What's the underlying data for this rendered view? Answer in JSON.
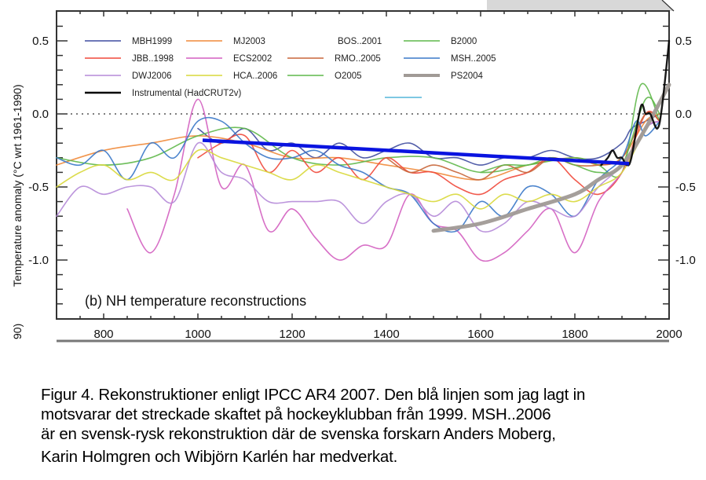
{
  "chart_data": {
    "type": "line",
    "title": "(b) NH temperature reconstructions",
    "xlabel": "",
    "ylabel": "Temperature anomaly (°C wrt 1961-1990)",
    "ylabel_cropped_fragment": "90)",
    "xlim": [
      700,
      2000
    ],
    "ylim": [
      -1.4,
      0.7
    ],
    "x_ticks": [
      800,
      1000,
      1200,
      1400,
      1600,
      1800,
      2000
    ],
    "x_tick_labels": [
      "800",
      "1000",
      "1200",
      "1400",
      "1600",
      "1800",
      "2000"
    ],
    "y_ticks": [
      0.5,
      0.0,
      -0.5,
      -1.0
    ],
    "y_tick_labels_left": [
      "0.5",
      "0.0",
      "-0.5",
      "-1.0"
    ],
    "y_tick_labels_right": [
      "0.5",
      "0.0",
      "-0.5",
      "-1.0"
    ],
    "zero_line": "dotted",
    "grid": false,
    "legend_position": "top-left",
    "legend": [
      {
        "name": "MBH1999",
        "color": "#3f4ca0"
      },
      {
        "name": "MJ2003",
        "color": "#f08a3a"
      },
      {
        "name": "BOS..2001",
        "color": "#e8e8e8"
      },
      {
        "name": "B2000",
        "color": "#5fb84a"
      },
      {
        "name": "JBB..1998",
        "color": "#f0483a"
      },
      {
        "name": "ECS2002",
        "color": "#d35fc0"
      },
      {
        "name": "RMO..2005",
        "color": "#c8663a"
      },
      {
        "name": "MSH..2005",
        "color": "#3a78c8"
      },
      {
        "name": "DWJ2006",
        "color": "#b58ad8"
      },
      {
        "name": "HCA..2006",
        "color": "#d8d83a"
      },
      {
        "name": "O2005",
        "color": "#5fb84a"
      },
      {
        "name": "PS2004",
        "color": "#a09a96"
      },
      {
        "name": "Instrumental (HadCRUT2v)",
        "color": "#000000"
      },
      {
        "name": "",
        "color": "#7ec8e3"
      }
    ],
    "series": [
      {
        "name": "MBH1999",
        "color": "#3f4ca0",
        "x": [
          1000,
          1050,
          1100,
          1150,
          1200,
          1250,
          1300,
          1350,
          1400,
          1450,
          1500,
          1550,
          1600,
          1650,
          1700,
          1750,
          1800,
          1850,
          1900,
          1920,
          1950,
          1980
        ],
        "y": [
          -0.1,
          -0.2,
          -0.1,
          -0.25,
          -0.2,
          -0.3,
          -0.2,
          -0.3,
          -0.25,
          -0.2,
          -0.3,
          -0.3,
          -0.35,
          -0.3,
          -0.3,
          -0.25,
          -0.3,
          -0.3,
          -0.2,
          -0.1,
          -0.05,
          0.0
        ]
      },
      {
        "name": "MJ2003",
        "color": "#f08a3a",
        "x": [
          700,
          800,
          900,
          1000,
          1100,
          1200,
          1300,
          1400,
          1500,
          1600,
          1700,
          1800,
          1850,
          1900,
          1950,
          1980
        ],
        "y": [
          -0.35,
          -0.25,
          -0.2,
          -0.15,
          -0.2,
          -0.3,
          -0.3,
          -0.35,
          -0.4,
          -0.45,
          -0.35,
          -0.3,
          -0.35,
          -0.3,
          -0.05,
          0.0
        ]
      },
      {
        "name": "B2000",
        "color": "#5fb84a",
        "x": [
          700,
          800,
          900,
          1000,
          1100,
          1200,
          1300,
          1400,
          1500,
          1600,
          1700,
          1800,
          1850,
          1900,
          1940,
          1980
        ],
        "y": [
          -0.3,
          -0.35,
          -0.3,
          -0.15,
          -0.1,
          -0.3,
          -0.35,
          -0.3,
          -0.3,
          -0.4,
          -0.35,
          -0.3,
          -0.35,
          -0.4,
          0.2,
          -0.05
        ]
      },
      {
        "name": "JBB..1998",
        "color": "#f0483a",
        "x": [
          1000,
          1050,
          1100,
          1150,
          1200,
          1250,
          1300,
          1350,
          1400,
          1450,
          1500,
          1550,
          1600,
          1650,
          1700,
          1750,
          1800,
          1850,
          1900,
          1950,
          1980
        ],
        "y": [
          -0.3,
          -0.2,
          -0.15,
          -0.4,
          -0.25,
          -0.4,
          -0.3,
          -0.45,
          -0.3,
          -0.4,
          -0.4,
          -0.5,
          -0.55,
          -0.45,
          -0.4,
          -0.3,
          -0.45,
          -0.55,
          -0.4,
          0.0,
          -0.05
        ]
      },
      {
        "name": "ECS2002",
        "color": "#d35fc0",
        "x": [
          850,
          900,
          950,
          1000,
          1050,
          1100,
          1150,
          1200,
          1250,
          1300,
          1350,
          1400,
          1450,
          1500,
          1550,
          1600,
          1650,
          1700,
          1750,
          1800,
          1850,
          1900,
          1950,
          1980
        ],
        "y": [
          -0.65,
          -0.95,
          -0.55,
          0.1,
          -0.5,
          -0.35,
          -0.8,
          -0.65,
          -0.85,
          -1.0,
          -0.9,
          -0.9,
          -0.55,
          -0.75,
          -0.8,
          -1.0,
          -0.95,
          -0.8,
          -0.65,
          -0.95,
          -0.6,
          -0.4,
          -0.1,
          -0.05
        ]
      },
      {
        "name": "RMO..2005",
        "color": "#c8663a",
        "x": [
          1400,
          1450,
          1500,
          1550,
          1600,
          1650,
          1700,
          1750,
          1800,
          1850,
          1900,
          1950,
          1980
        ],
        "y": [
          -0.3,
          -0.4,
          -0.35,
          -0.4,
          -0.45,
          -0.35,
          -0.4,
          -0.3,
          -0.35,
          -0.35,
          -0.3,
          0.0,
          -0.05
        ]
      },
      {
        "name": "MSH..2005",
        "color": "#3a78c8",
        "x": [
          700,
          750,
          800,
          850,
          900,
          950,
          1000,
          1050,
          1100,
          1150,
          1200,
          1250,
          1300,
          1350,
          1400,
          1450,
          1500,
          1550,
          1600,
          1650,
          1700,
          1750,
          1800,
          1850,
          1900,
          1930,
          1950,
          1980
        ],
        "y": [
          -0.3,
          -0.35,
          -0.25,
          -0.45,
          -0.2,
          -0.3,
          -0.05,
          -0.05,
          -0.2,
          -0.3,
          -0.3,
          -0.25,
          -0.35,
          -0.4,
          -0.5,
          -0.55,
          -0.75,
          -0.8,
          -0.6,
          -0.7,
          -0.5,
          -0.55,
          -0.7,
          -0.45,
          -0.3,
          -0.05,
          -0.15,
          -0.05
        ]
      },
      {
        "name": "DWJ2006",
        "color": "#b58ad8",
        "x": [
          700,
          750,
          800,
          850,
          900,
          950,
          1000,
          1050,
          1100,
          1150,
          1200,
          1250,
          1300,
          1350,
          1400,
          1450,
          1500,
          1550,
          1600,
          1650,
          1700,
          1750,
          1800,
          1850,
          1900,
          1950,
          1980
        ],
        "y": [
          -0.7,
          -0.5,
          -0.55,
          -0.5,
          -0.5,
          -0.6,
          -0.2,
          -0.4,
          -0.45,
          -0.6,
          -0.6,
          -0.6,
          -0.6,
          -0.75,
          -0.6,
          -0.55,
          -0.7,
          -0.6,
          -0.8,
          -0.75,
          -0.6,
          -0.65,
          -0.7,
          -0.5,
          -0.35,
          -0.1,
          -0.05
        ]
      },
      {
        "name": "HCA..2006",
        "color": "#d8d83a",
        "x": [
          700,
          750,
          800,
          850,
          900,
          950,
          1000,
          1050,
          1100,
          1150,
          1200,
          1250,
          1300,
          1350,
          1400,
          1450,
          1500,
          1550,
          1600,
          1650,
          1700,
          1750,
          1800,
          1850,
          1900,
          1950
        ],
        "y": [
          -0.5,
          -0.4,
          -0.35,
          -0.45,
          -0.4,
          -0.45,
          -0.25,
          -0.3,
          -0.35,
          -0.4,
          -0.45,
          -0.35,
          -0.4,
          -0.45,
          -0.5,
          -0.55,
          -0.6,
          -0.55,
          -0.65,
          -0.55,
          -0.6,
          -0.55,
          -0.6,
          -0.5,
          -0.4,
          -0.1
        ]
      },
      {
        "name": "O2005",
        "color": "#5fb84a",
        "x": [
          1600,
          1650,
          1700,
          1750,
          1800,
          1850,
          1900,
          1950,
          1980
        ],
        "y": [
          -0.4,
          -0.35,
          -0.35,
          -0.3,
          -0.35,
          -0.4,
          -0.35,
          0.1,
          0.0
        ]
      },
      {
        "name": "PS2004",
        "color": "#a09a96",
        "x": [
          1500,
          1600,
          1700,
          1800,
          1850,
          1900,
          1950,
          2000
        ],
        "y": [
          -0.8,
          -0.75,
          -0.65,
          -0.55,
          -0.45,
          -0.35,
          -0.1,
          0.2
        ]
      },
      {
        "name": "Instrumental (HadCRUT2v)",
        "color": "#000000",
        "x": [
          1856,
          1870,
          1880,
          1890,
          1900,
          1910,
          1920,
          1940,
          1950,
          1960,
          1975,
          1985,
          2000
        ],
        "y": [
          -0.35,
          -0.3,
          -0.25,
          -0.3,
          -0.3,
          -0.35,
          -0.3,
          0.05,
          0.0,
          0.0,
          -0.1,
          0.05,
          0.5
        ]
      }
    ],
    "annotations": [
      {
        "type": "line",
        "name": "added blue trend line (hockey stick shaft)",
        "color": "#0a14e0",
        "x": [
          1010,
          1915
        ],
        "y": [
          -0.18,
          -0.34
        ]
      }
    ]
  },
  "caption": {
    "line1": "Figur 4. Rekonstruktioner enligt IPCC AR4 2007. Den blå linjen som jag lagt in",
    "line2": "motsvarar det streckade skaftet på hockeyklubban från 1999. MSH..2006",
    "line3": "är en svensk-rysk rekonstruktion där de svenska forskarn Anders Moberg,",
    "line4": "Karin Holmgren och Wibjörn Karlén har medverkat."
  }
}
